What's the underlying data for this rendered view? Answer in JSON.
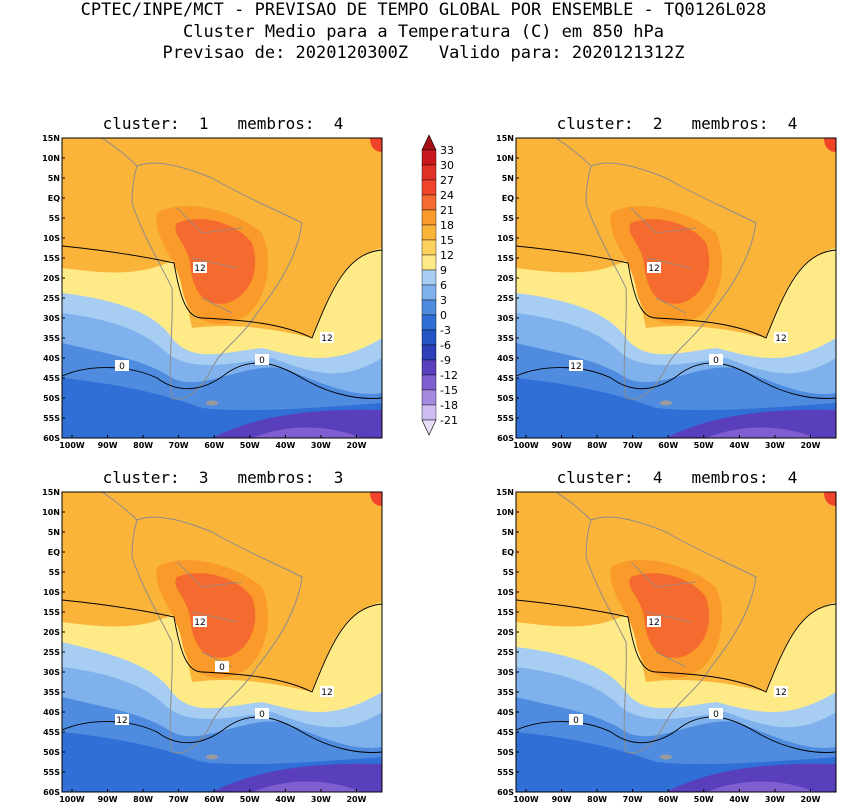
{
  "header": {
    "line1": "CPTEC/INPE/MCT - PREVISAO DE TEMPO GLOBAL POR ENSEMBLE - TQ0126L028",
    "line2": "Cluster Medio para a Temperatura (C) em 850 hPa",
    "line3": "Previsao de: 2020120300Z   Valido para: 2020121312Z"
  },
  "lat_labels": [
    "15N",
    "10N",
    "5N",
    "EQ",
    "5S",
    "10S",
    "15S",
    "20S",
    "25S",
    "30S",
    "35S",
    "40S",
    "45S",
    "50S",
    "55S",
    "60S"
  ],
  "lon_labels": [
    "100W",
    "90W",
    "80W",
    "70W",
    "60W",
    "50W",
    "40W",
    "30W",
    "20W"
  ],
  "colorbar": {
    "labels": [
      "33",
      "30",
      "27",
      "24",
      "21",
      "18",
      "15",
      "12",
      "9",
      "6",
      "3",
      "0",
      "-3",
      "-6",
      "-9",
      "-12",
      "-15",
      "-18",
      "-21"
    ],
    "colors": [
      "#a50f15",
      "#c8161d",
      "#e03127",
      "#f0442a",
      "#f56a2e",
      "#f99a2a",
      "#fbb43a",
      "#fdd35e",
      "#ffea88",
      "#a7cdf2",
      "#7fb2ec",
      "#4f8ce0",
      "#2f6fd6",
      "#2354c6",
      "#2e3fba",
      "#5a3fbc",
      "#7f5fd0",
      "#a58be0",
      "#cdbdf0",
      "#e8defa"
    ]
  },
  "panels": [
    {
      "title": "cluster:  1   membros:  4",
      "contour_labels": [
        "12",
        "12",
        "0",
        "0"
      ]
    },
    {
      "title": "cluster:  2   membros:  4",
      "contour_labels": [
        "12",
        "12",
        "12",
        "0"
      ]
    },
    {
      "title": "cluster:  3   membros:  3",
      "contour_labels": [
        "12",
        "12",
        "12",
        "0",
        "0"
      ]
    },
    {
      "title": "cluster:  4   membros:  4",
      "contour_labels": [
        "12",
        "12",
        "0",
        "0"
      ]
    }
  ]
}
